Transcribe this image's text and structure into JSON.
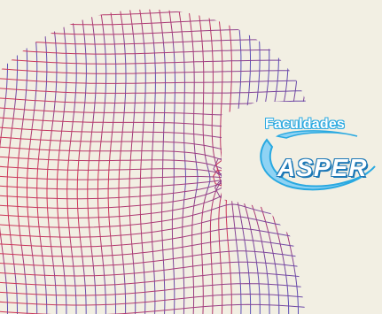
{
  "colors": {
    "background": "#f2efe3",
    "grid_left": "#c8365a",
    "grid_right": "#6a4db0",
    "logo_light": "#8fd3f4",
    "logo_dark": "#29a9e1"
  },
  "logo": {
    "top_text": "Faculdades",
    "main_text": "ASPER"
  }
}
